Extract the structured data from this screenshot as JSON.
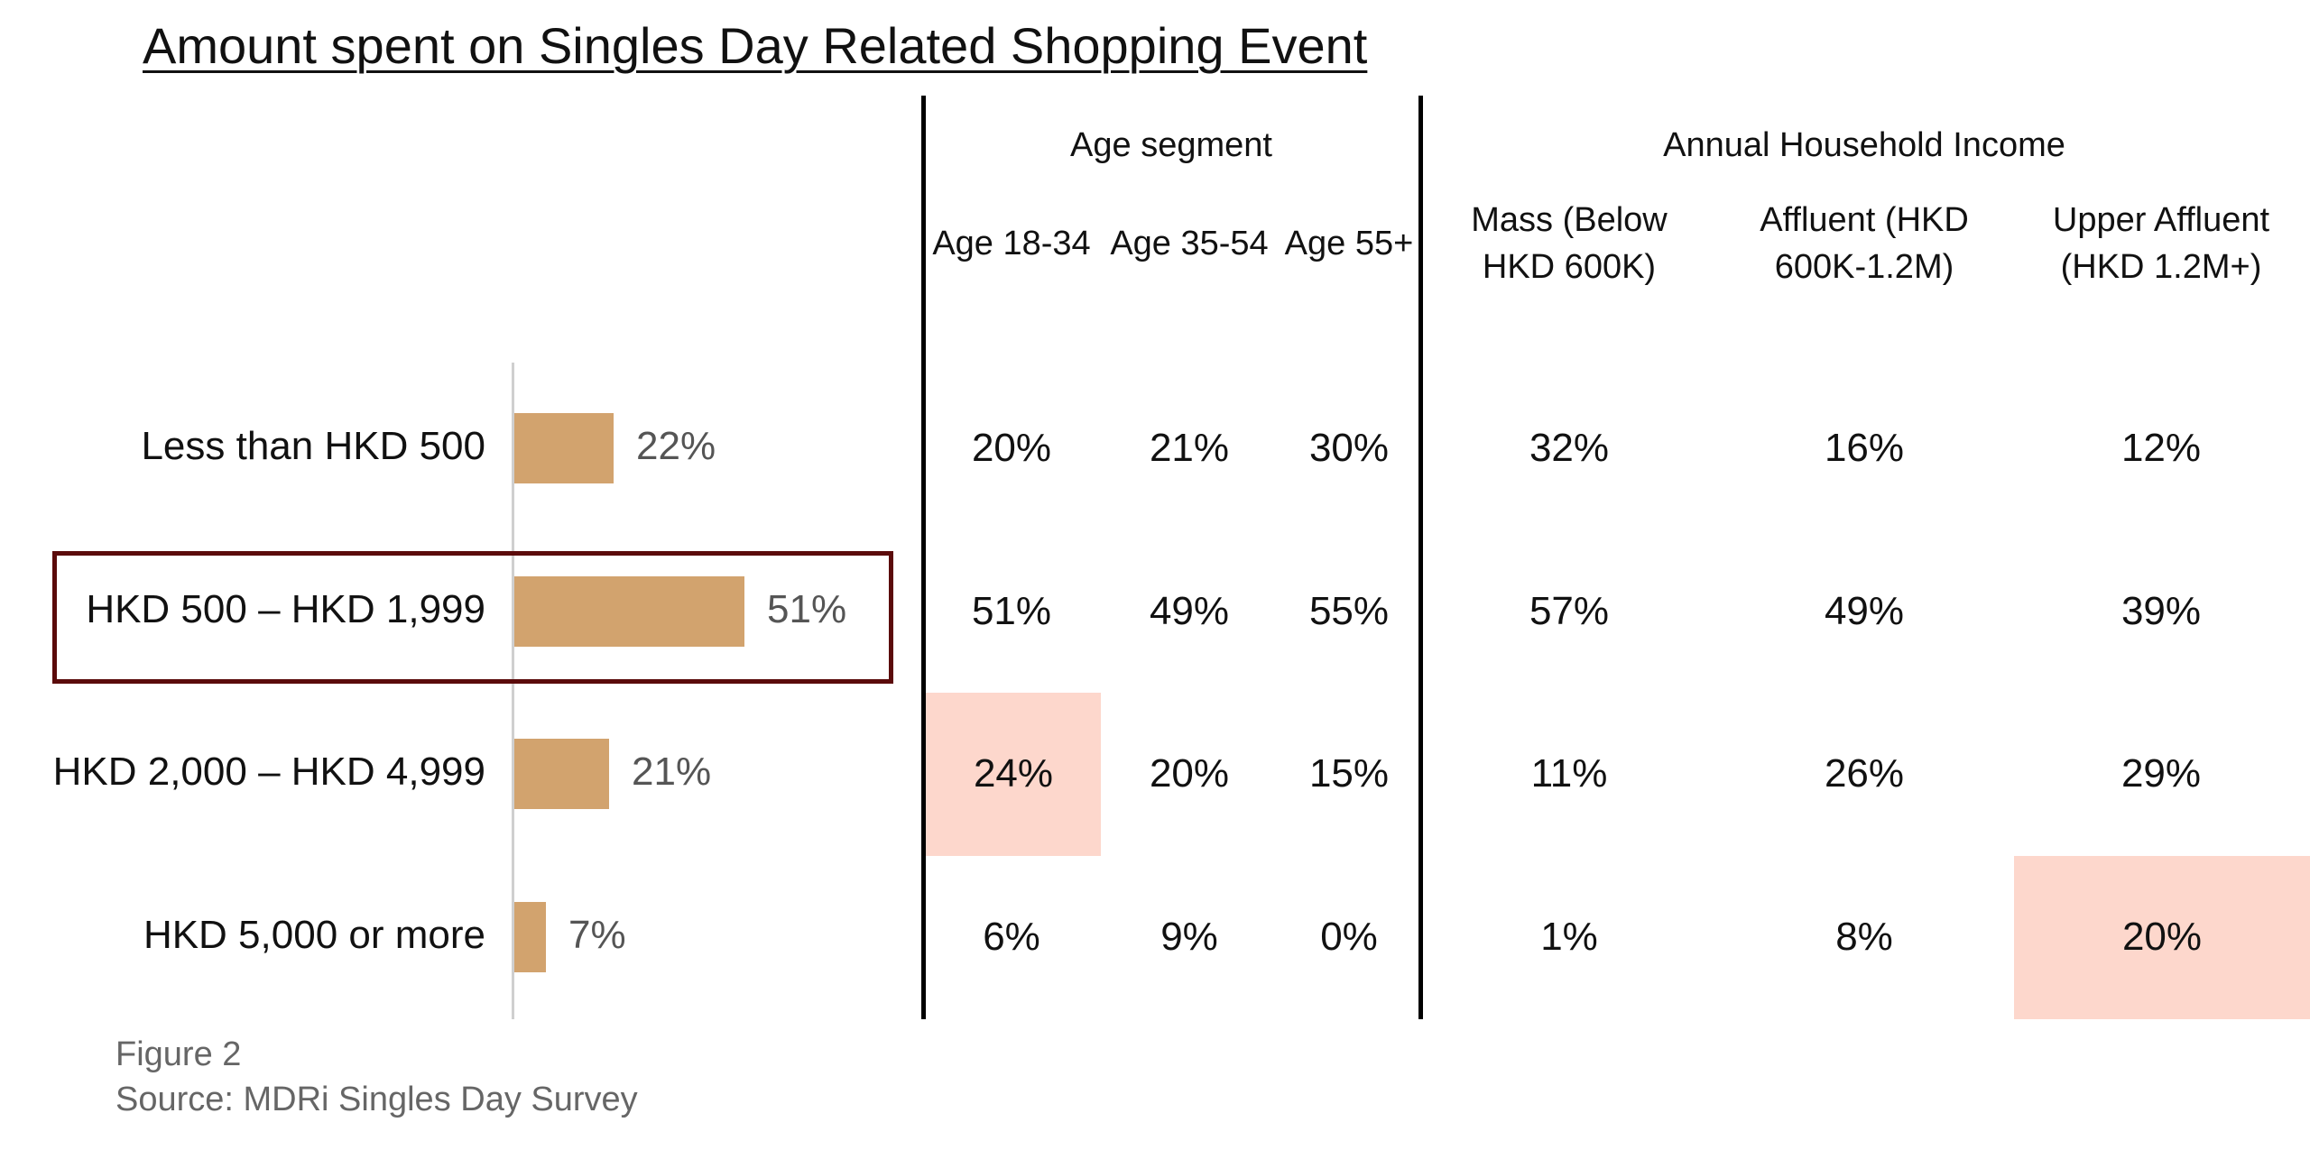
{
  "chart_data": {
    "type": "bar",
    "orientation": "horizontal",
    "title": "Amount spent on Singles Day Related Shopping Event",
    "categories": [
      "Less than HKD 500",
      "HKD 500 – HKD 1,999",
      "HKD 2,000 – HKD 4,999",
      "HKD 5,000 or more"
    ],
    "values": [
      22,
      51,
      21,
      7
    ],
    "value_labels": [
      "22%",
      "51%",
      "21%",
      "7%"
    ],
    "xlim": [
      0,
      100
    ],
    "highlighted_category": "HKD 500 – HKD 1,999",
    "bar_color": "#d2a36e",
    "highlight_box_color": "#5b0b0b",
    "table": {
      "groups": [
        {
          "name": "Age segment",
          "columns": [
            {
              "header": [
                "Age 18-34"
              ],
              "values": [
                "20%",
                "51%",
                "24%",
                "6%"
              ],
              "highlight_row": 2
            },
            {
              "header": [
                "Age 35-54"
              ],
              "values": [
                "21%",
                "49%",
                "20%",
                "9%"
              ],
              "highlight_row": null
            },
            {
              "header": [
                "Age 55+"
              ],
              "values": [
                "30%",
                "55%",
                "15%",
                "0%"
              ],
              "highlight_row": null
            }
          ]
        },
        {
          "name": "Annual Household Income",
          "columns": [
            {
              "header": [
                "Mass (Below",
                "HKD 600K)"
              ],
              "values": [
                "32%",
                "57%",
                "11%",
                "1%"
              ],
              "highlight_row": null
            },
            {
              "header": [
                "Affluent (HKD",
                "600K-1.2M)"
              ],
              "values": [
                "16%",
                "49%",
                "26%",
                "8%"
              ],
              "highlight_row": null
            },
            {
              "header": [
                "Upper Affluent",
                "(HKD 1.2M+)"
              ],
              "values": [
                "12%",
                "39%",
                "29%",
                "20%"
              ],
              "highlight_row": 3
            }
          ]
        }
      ],
      "highlight_color": "#fdd7cc"
    }
  },
  "footer": {
    "figure": "Figure 2",
    "source": "Source: MDRi Singles Day Survey"
  }
}
